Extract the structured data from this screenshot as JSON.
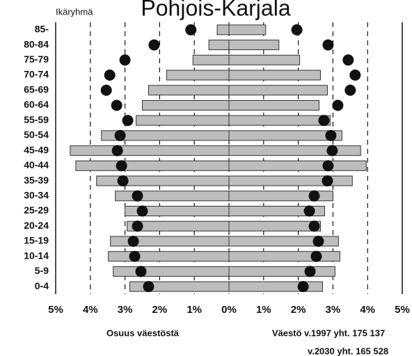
{
  "chart_data": {
    "type": "pyramid",
    "title": "Pohjois-Karjala",
    "y_label": "Ikäryhmä",
    "x_label": "Osuus väestöstä",
    "annotations": [
      "Väestö v.1997 yht. 175 137",
      "v.2030 yht. 165 528"
    ],
    "categories": [
      "85-",
      "80-84",
      "75-79",
      "70-74",
      "65-69",
      "60-64",
      "55-59",
      "50-54",
      "45-49",
      "40-44",
      "35-39",
      "30-34",
      "25-29",
      "20-24",
      "15-19",
      "10-14",
      "5-9",
      "0-4"
    ],
    "series": [
      {
        "mark": "bar",
        "color": "#bdbdbd",
        "values": [
          -0.34,
          -0.58,
          -1.04,
          -1.8,
          -2.32,
          -2.5,
          -2.68,
          -3.68,
          -4.58,
          -4.42,
          -3.82,
          -3.28,
          -3.0,
          -2.94,
          -3.42,
          -3.48,
          -3.34,
          -2.86
        ]
      },
      {
        "mark": "bar",
        "color": "#bdbdbd",
        "values": [
          1.06,
          1.44,
          2.04,
          2.64,
          2.84,
          2.6,
          2.92,
          3.26,
          3.8,
          3.96,
          3.56,
          3.0,
          2.76,
          2.64,
          3.16,
          3.2,
          3.06,
          2.7
        ]
      },
      {
        "mark": "dot",
        "color": "#111111",
        "values": [
          -1.1,
          -2.16,
          -3.0,
          -3.44,
          -3.54,
          -3.24,
          -2.92,
          -3.14,
          -3.22,
          -3.1,
          -3.06,
          -2.64,
          -2.5,
          -2.64,
          -2.76,
          -2.72,
          -2.54,
          -2.32
        ]
      },
      {
        "mark": "dot",
        "color": "#111111",
        "values": [
          1.96,
          2.86,
          3.44,
          3.64,
          3.5,
          3.14,
          2.74,
          2.94,
          2.98,
          2.86,
          2.84,
          2.46,
          2.32,
          2.46,
          2.58,
          2.52,
          2.34,
          2.14
        ]
      }
    ],
    "xlim": [
      -5,
      5
    ],
    "xticks": [
      {
        "value": -5,
        "label": "5%"
      },
      {
        "value": -4,
        "label": "4%"
      },
      {
        "value": -3,
        "label": "3%"
      },
      {
        "value": -2,
        "label": "2%"
      },
      {
        "value": -1,
        "label": "1%"
      },
      {
        "value": 0,
        "label": "0%"
      },
      {
        "value": 1,
        "label": "1%"
      },
      {
        "value": 2,
        "label": "2%"
      },
      {
        "value": 3,
        "label": "3%"
      },
      {
        "value": 4,
        "label": "4%"
      },
      {
        "value": 5,
        "label": "5%"
      }
    ],
    "grid": true
  }
}
